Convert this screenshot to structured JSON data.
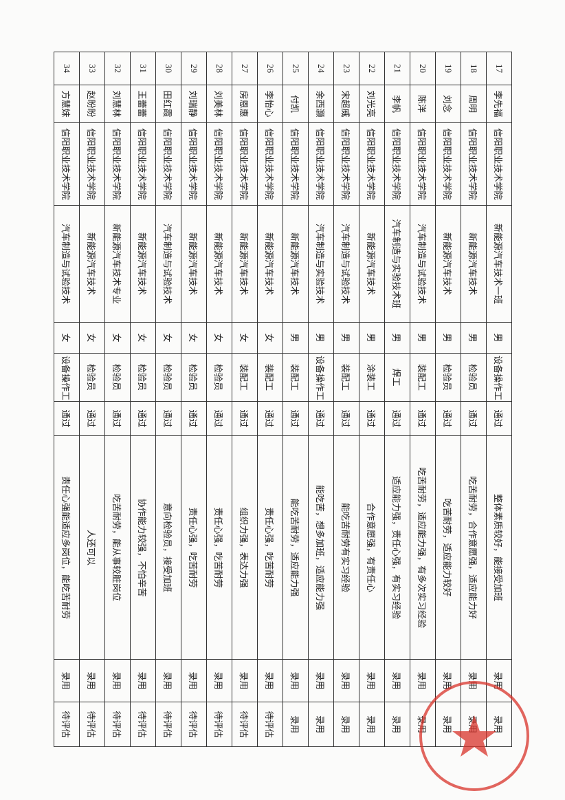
{
  "table": {
    "rows": [
      [
        "17",
        "李先福",
        "信阳职业技术学院",
        "新能源汽车技术一班",
        "男",
        "设备操作工",
        "通过",
        "整体素质较好，能接受加班",
        "录用",
        "录用"
      ],
      [
        "18",
        "周明",
        "信阳职业技术学院",
        "新能源汽车技术",
        "男",
        "检验员",
        "通过",
        "吃苦耐劳，合作意愿强，适应能力好",
        "录用",
        "录用"
      ],
      [
        "19",
        "刘念",
        "信阳职业技术学院",
        "新能源汽车技术",
        "男",
        "检验员",
        "通过",
        "吃苦耐劳，适应能力较好",
        "录用",
        "录用"
      ],
      [
        "20",
        "陈洋",
        "信阳职业技术学院",
        "汽车制造与试验技术",
        "男",
        "装配工",
        "通过",
        "吃苦耐劳，适应能力强，有多次实习经验",
        "录用",
        "录用"
      ],
      [
        "21",
        "李帆",
        "信阳职业技术学院",
        "汽车制造与实验技术班",
        "男",
        "焊工",
        "通过",
        "适应能力强，责任心强，有实习经验",
        "录用",
        "录用"
      ],
      [
        "22",
        "刘光亮",
        "信阳职业技术学院",
        "新能源汽车技术",
        "男",
        "涂装工",
        "通过",
        "合作意愿强，有责任心",
        "录用",
        "录用"
      ],
      [
        "23",
        "宋超威",
        "信阳职业技术学院",
        "汽车制造与试验技术",
        "男",
        "装配工",
        "通过",
        "能吃苦耐劳有实习经验",
        "录用",
        "录用"
      ],
      [
        "24",
        "余西灏",
        "信阳职业技术学院",
        "汽车制造与实验技术",
        "男",
        "设备操作工",
        "通过",
        "能吃苦，想多加班，适应能力强",
        "录用",
        "录用"
      ],
      [
        "25",
        "付凯",
        "信阳职业技术学院",
        "新能源汽车技术",
        "男",
        "装配工",
        "通过",
        "能吃苦耐劳，适应能力强",
        "录用",
        "录用"
      ],
      [
        "26",
        "李怡心",
        "信阳职业技术学院",
        "新能源汽车技术",
        "女",
        "装配工",
        "通过",
        "责任心强，吃苦耐劳",
        "录用",
        "待评估"
      ],
      [
        "27",
        "房恩惠",
        "信阳职业技术学院",
        "新能源汽车技术",
        "女",
        "装配工",
        "通过",
        "组织力强，表达力强",
        "录用",
        "待评估"
      ],
      [
        "28",
        "刘美林",
        "信阳职业技术学院",
        "新能源汽车技术",
        "女",
        "检验员",
        "通过",
        "责任心强，吃苦耐劳",
        "录用",
        "待评估"
      ],
      [
        "29",
        "刘瑞静",
        "信阳职业技术学院",
        "新能源汽车技术",
        "女",
        "检验员",
        "通过",
        "责任心强，吃苦耐劳",
        "录用",
        "待评估"
      ],
      [
        "30",
        "田红霞",
        "信阳职业技术学院",
        "汽车制造与试验技术",
        "女",
        "检验员",
        "通过",
        "意向检验员，接受加班",
        "录用",
        "待评估"
      ],
      [
        "31",
        "王蕾蕾",
        "信阳职业技术学院",
        "新能源汽车技术",
        "女",
        "检验员",
        "通过",
        "协作能力较强，不怕辛苦",
        "录用",
        "待评估"
      ],
      [
        "32",
        "刘慧林",
        "信阳职业技术学院",
        "新能源汽车技术专业",
        "女",
        "检验员",
        "通过",
        "吃苦耐劳，能从事较脏岗位",
        "录用",
        "待评估"
      ],
      [
        "33",
        "赵盼盼",
        "信阳职业技术学院",
        "新能源汽车技术",
        "女",
        "检验员",
        "通过",
        "人还可以",
        "录用",
        "待评估"
      ],
      [
        "34",
        "方慧妹",
        "信阳职业技术学院",
        "汽车制造与试验技术",
        "女",
        "设备操作工",
        "通过",
        "责任心强能适应多岗位，能吃苦耐劳",
        "录用",
        "待评估"
      ]
    ]
  }
}
